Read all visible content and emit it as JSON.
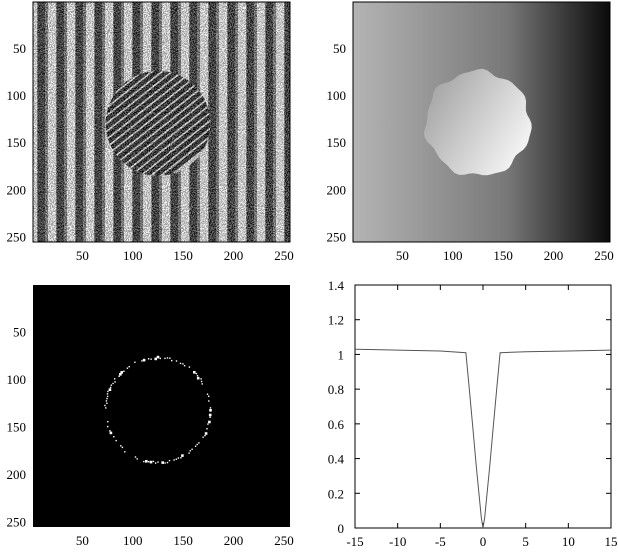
{
  "chart_data": [
    {
      "type": "heatmap",
      "panel": "top-left",
      "image": "wrapped phase map: vertical noisy fringes with a circular region of diagonal fringes",
      "colormap": "gray",
      "xlim": [
        1,
        256
      ],
      "ylim": [
        256,
        1
      ],
      "xticks": [
        50,
        100,
        150,
        200,
        250
      ],
      "yticks": [
        50,
        100,
        150,
        200,
        250
      ],
      "circle": {
        "cx": 125,
        "cy": 130,
        "r": 52
      }
    },
    {
      "type": "heatmap",
      "panel": "top-right",
      "image": "unwrapped phase: horizontal gradient light to dark with a brighter circular region",
      "colormap": "gray",
      "xlim": [
        1,
        256
      ],
      "ylim": [
        256,
        1
      ],
      "xticks": [
        50,
        100,
        150,
        200,
        250
      ],
      "yticks": [
        50,
        100,
        150,
        200,
        250
      ],
      "circle": {
        "cx": 125,
        "cy": 130,
        "r": 52
      }
    },
    {
      "type": "heatmap",
      "panel": "bottom-left",
      "image": "black background with a thin white fragmented ring",
      "colormap": "gray",
      "xlim": [
        1,
        256
      ],
      "ylim": [
        256,
        1
      ],
      "xticks": [
        50,
        100,
        150,
        200,
        250
      ],
      "yticks": [
        50,
        100,
        150,
        200,
        250
      ],
      "circle": {
        "cx": 125,
        "cy": 133,
        "r": 52
      }
    },
    {
      "type": "line",
      "panel": "bottom-right",
      "xlim": [
        -15,
        15
      ],
      "ylim": [
        0,
        1.4
      ],
      "xticks": [
        -15,
        -10,
        -5,
        0,
        5,
        10,
        15
      ],
      "yticks": [
        0,
        0.2,
        0.4,
        0.6,
        0.8,
        1,
        1.2,
        1.4
      ],
      "xtick_labels": [
        "-15",
        "-10",
        "-5",
        "0",
        "5",
        "10",
        "15"
      ],
      "ytick_labels": [
        "0",
        "0.2",
        "0.4",
        "0.6",
        "0.8",
        "1",
        "1.2",
        "1.4"
      ],
      "series": [
        {
          "x": [
            -15,
            -10,
            -5,
            -2,
            -1.6,
            -1.2,
            -0.8,
            -0.4,
            -0.2,
            0,
            0.2,
            0.4,
            0.8,
            1.2,
            1.6,
            2,
            5,
            10,
            15
          ],
          "y": [
            1.03,
            1.025,
            1.02,
            1.01,
            0.8,
            0.58,
            0.36,
            0.16,
            0.06,
            0.0,
            0.06,
            0.16,
            0.36,
            0.58,
            0.8,
            1.01,
            1.015,
            1.02,
            1.025
          ]
        }
      ]
    }
  ]
}
